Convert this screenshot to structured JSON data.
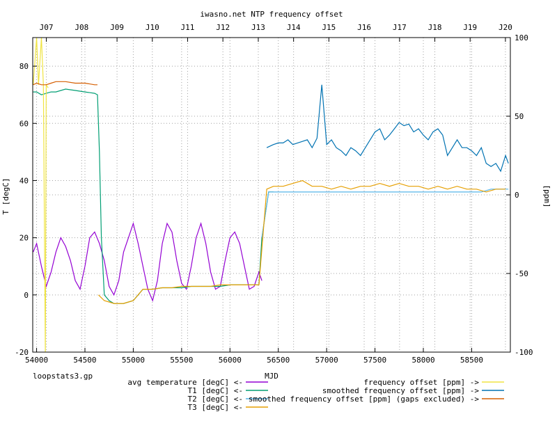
{
  "chart_data": {
    "type": "line",
    "title": "iwasno.net NTP frequency offset",
    "xlabel": "MJD",
    "ylabel_left": "T [degC]",
    "ylabel_right": "[ppm]",
    "footer": "loopstats3.gp",
    "xlim": [
      53960,
      58900
    ],
    "ylim_left": [
      -20,
      90
    ],
    "ylim_right": [
      -100,
      100
    ],
    "x_ticks": [
      54000,
      54500,
      55000,
      55500,
      56000,
      56500,
      57000,
      57500,
      58000,
      58500
    ],
    "x_tick_labels": [
      "54000",
      "54500",
      "55000",
      "55500",
      "56000",
      "56500",
      "57000",
      "57500",
      "58000",
      "58500"
    ],
    "y_left_ticks": [
      -20,
      0,
      20,
      40,
      60,
      80
    ],
    "y_left_tick_labels": [
      "-20",
      "0",
      "20",
      "40",
      "60",
      "80"
    ],
    "y_right_ticks": [
      -100,
      -50,
      0,
      50,
      100
    ],
    "y_right_tick_labels": [
      "-100",
      "-50",
      "0",
      "50",
      "100"
    ],
    "top_axis": {
      "labels": [
        "J07",
        "J08",
        "J09",
        "J10",
        "J11",
        "J12",
        "J13",
        "J14",
        "J15",
        "J16",
        "J17",
        "J18",
        "J19",
        "J20"
      ],
      "positions": [
        54101,
        54466,
        54832,
        55197,
        55562,
        55927,
        56293,
        56658,
        57023,
        57388,
        57754,
        58119,
        58484,
        58849
      ]
    },
    "grid": true,
    "legend_position": "bottom",
    "series": [
      {
        "name": "avg temperature [degC] <-",
        "axis": "left",
        "color": "#9400d3",
        "x": [
          53965,
          54000,
          54050,
          54100,
          54150,
          54200,
          54250,
          54300,
          54350,
          54400,
          54450,
          54500,
          54550,
          54600,
          54650,
          54700,
          54750,
          54800,
          54850,
          54900,
          54950,
          55000,
          55050,
          55100,
          55150,
          55200,
          55250,
          55300,
          55350,
          55400,
          55450,
          55500,
          55550,
          55600,
          55650,
          55700,
          55750,
          55800,
          55850,
          55900,
          55950,
          56000,
          56050,
          56100,
          56150,
          56200,
          56250,
          56300,
          56330
        ],
        "y": [
          15,
          18,
          10,
          3,
          8,
          15,
          20,
          17,
          12,
          5,
          2,
          10,
          20,
          22,
          18,
          12,
          3,
          0,
          5,
          15,
          20,
          25,
          18,
          10,
          2,
          -2,
          5,
          18,
          25,
          22,
          12,
          4,
          2,
          10,
          20,
          25,
          18,
          8,
          2,
          3,
          12,
          20,
          22,
          18,
          10,
          2,
          3,
          8,
          5
        ]
      },
      {
        "name": "T1 [degC] <-",
        "axis": "left",
        "color": "#009e73",
        "x": [
          53965,
          54000,
          54050,
          54100,
          54150,
          54200,
          54300,
          54400,
          54500,
          54600,
          54630,
          54650,
          54670,
          54700,
          54750,
          54800,
          54900,
          55000,
          55050,
          55100,
          55200,
          55300,
          55400,
          55500,
          55600,
          55700,
          55800,
          55900,
          56000,
          56100,
          56200,
          56300,
          56330,
          56400,
          56450
        ],
        "y": [
          71,
          71,
          70,
          70.5,
          71,
          71,
          72,
          71.5,
          71,
          70.5,
          70,
          50,
          20,
          0,
          -2,
          -3,
          -3,
          -2,
          0,
          2,
          2,
          2.5,
          2.5,
          2.5,
          3,
          3,
          3,
          3,
          3.5,
          3.5,
          3.5,
          3.5,
          20,
          36,
          36
        ]
      },
      {
        "name": "T2 [degC] <-",
        "axis": "left",
        "color": "#56b4e9",
        "x": [
          56330,
          56400,
          56500,
          56600,
          56700,
          56800,
          56900,
          57000,
          57100,
          57200,
          57300,
          57400,
          57500,
          57600,
          57700,
          57800,
          57900,
          58000,
          58100,
          58200,
          58300,
          58400,
          58500,
          58600,
          58700,
          58800,
          58880
        ],
        "y": [
          20,
          36,
          36,
          36,
          36,
          36,
          36,
          36,
          36,
          36,
          36,
          36,
          36,
          36,
          36,
          36,
          36,
          36,
          36,
          36,
          36,
          36,
          36,
          36,
          37,
          37,
          37
        ]
      },
      {
        "name": "T3 [degC] <-",
        "axis": "left",
        "color": "#e69f00",
        "x": [
          54640,
          54700,
          54800,
          54900,
          55000,
          55100,
          55200,
          55300,
          55400,
          55500,
          55600,
          55700,
          55800,
          55900,
          56000,
          56100,
          56200,
          56300,
          56380,
          56450,
          56550,
          56650,
          56750,
          56850,
          56950,
          57050,
          57150,
          57250,
          57350,
          57450,
          57550,
          57650,
          57750,
          57850,
          57950,
          58050,
          58150,
          58250,
          58350,
          58450,
          58550,
          58650,
          58750,
          58850
        ],
        "y": [
          0,
          -2,
          -3,
          -3,
          -2,
          2,
          2,
          2.5,
          2.5,
          3,
          3,
          3,
          3,
          3.5,
          3.5,
          3.5,
          3.5,
          3.5,
          37,
          38,
          38,
          39,
          40,
          38,
          38,
          37,
          38,
          37,
          38,
          38,
          39,
          38,
          39,
          38,
          38,
          37,
          38,
          37,
          38,
          37,
          37,
          36,
          37,
          37
        ]
      },
      {
        "name": "frequency offset [ppm] ->",
        "axis": "right",
        "color": "#f0e442",
        "x": [
          53965,
          54000,
          54020,
          54050,
          54070,
          54090,
          54100,
          54120
        ],
        "y": [
          70,
          100,
          70,
          100,
          70,
          -100,
          70,
          68
        ]
      },
      {
        "name": "smoothed frequency offset [ppm] ->",
        "axis": "right",
        "color": "#0072b2",
        "x": [
          56380,
          56450,
          56500,
          56550,
          56600,
          56650,
          56700,
          56750,
          56800,
          56850,
          56900,
          56950,
          57000,
          57050,
          57100,
          57150,
          57200,
          57250,
          57300,
          57350,
          57400,
          57450,
          57500,
          57550,
          57600,
          57650,
          57700,
          57750,
          57800,
          57850,
          57900,
          57950,
          58000,
          58050,
          58100,
          58150,
          58200,
          58250,
          58300,
          58350,
          58400,
          58450,
          58500,
          58550,
          58600,
          58650,
          58700,
          58750,
          58800,
          58850,
          58880
        ],
        "y": [
          30,
          32,
          33,
          33,
          35,
          32,
          33,
          34,
          35,
          30,
          36,
          70,
          32,
          35,
          30,
          28,
          25,
          30,
          28,
          25,
          30,
          35,
          40,
          42,
          35,
          38,
          42,
          46,
          44,
          45,
          40,
          42,
          38,
          35,
          40,
          42,
          38,
          25,
          30,
          35,
          30,
          30,
          28,
          25,
          30,
          20,
          18,
          20,
          15,
          25,
          20
        ]
      },
      {
        "name": "smoothed frequency offset [ppm] (gaps excluded) ->",
        "axis": "right",
        "color": "#d55e00",
        "x": [
          53965,
          54000,
          54050,
          54100,
          54150,
          54200,
          54300,
          54400,
          54500,
          54600,
          54630
        ],
        "y": [
          70,
          71,
          70,
          70,
          71,
          72,
          72,
          71,
          71,
          70,
          70
        ]
      }
    ]
  }
}
